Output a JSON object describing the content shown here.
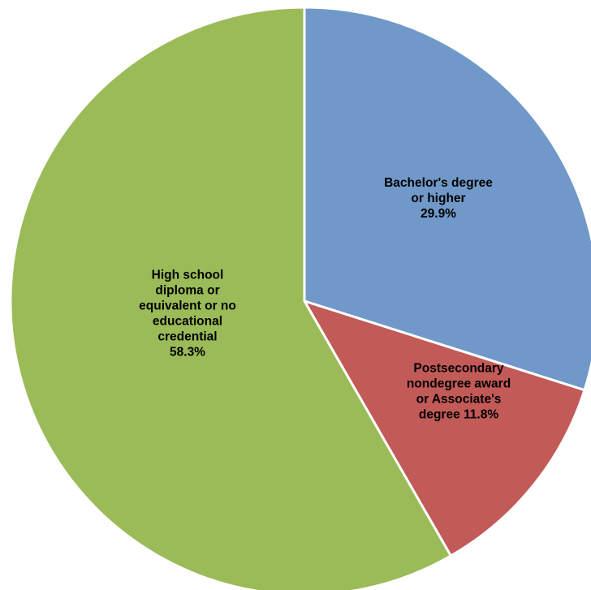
{
  "chart_data": {
    "type": "pie",
    "title": "",
    "slices": [
      {
        "label_lines": [
          "Bachelor's degree",
          "or higher",
          "29.9%"
        ],
        "category": "Bachelor's degree or higher",
        "value": 29.9,
        "color": "#7099c9"
      },
      {
        "label_lines": [
          "Postsecondary",
          "nondegree award",
          "or Associate's",
          "degree 11.8%"
        ],
        "category": "Postsecondary nondegree award or Associate's degree",
        "value": 11.8,
        "color": "#c25a57"
      },
      {
        "label_lines": [
          "High school",
          "diploma or",
          "equivalent or no",
          "educational",
          "credential",
          "58.3%"
        ],
        "category": "High school diploma or equivalent or no educational credential",
        "value": 58.3,
        "color": "#9bbb59"
      }
    ],
    "start_angle": "12 o'clock",
    "direction": "clockwise",
    "legend": "none"
  }
}
